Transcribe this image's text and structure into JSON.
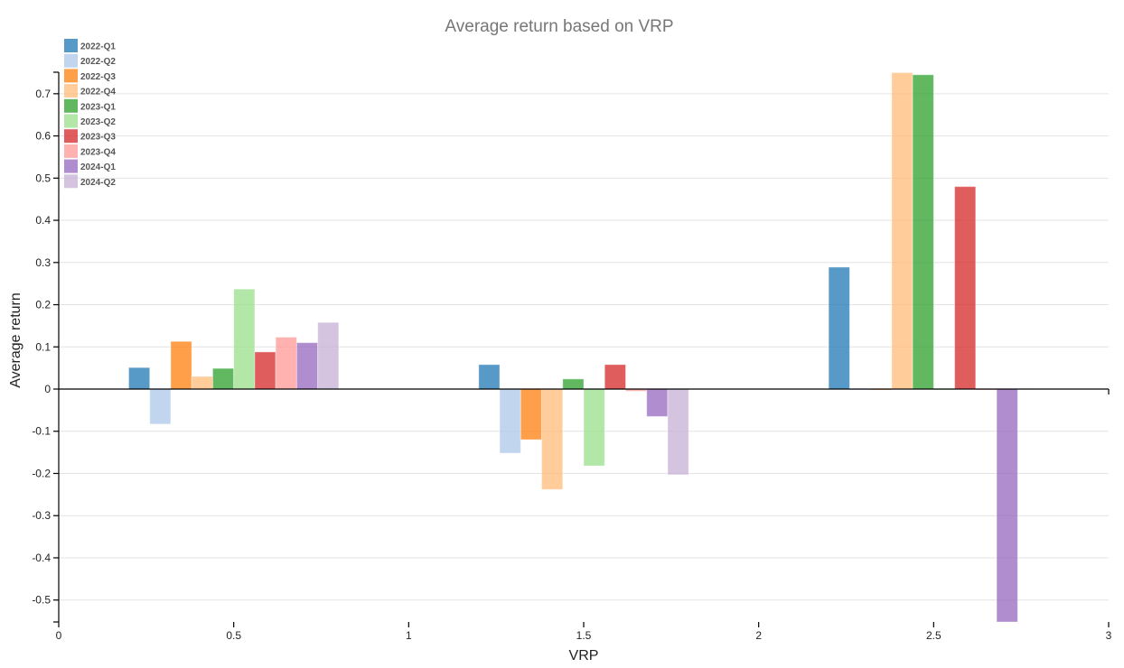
{
  "chart_data": {
    "type": "bar",
    "title": "Average return based on VRP",
    "xlabel": "VRP",
    "ylabel": "Average return",
    "xlim": [
      0,
      3
    ],
    "ylim": [
      -0.552,
      0.751
    ],
    "x_ticks": [
      0,
      0.5,
      1,
      1.5,
      2,
      2.5,
      3
    ],
    "x_tick_labels": [
      "0",
      "0.5",
      "1",
      "1.5",
      "2",
      "2.5",
      "3"
    ],
    "y_ticks": [
      -0.5,
      -0.4,
      -0.3,
      -0.2,
      -0.1,
      0,
      0.1,
      0.2,
      0.3,
      0.4,
      0.5,
      0.6,
      0.7
    ],
    "y_tick_labels": [
      "-0.5",
      "-0.4",
      "-0.3",
      "-0.2",
      "-0.1",
      "0",
      "0.1",
      "0.2",
      "0.3",
      "0.4",
      "0.5",
      "0.6",
      "0.7"
    ],
    "grid": true,
    "legend_position": "top-left",
    "categories": [
      0.5,
      1.5,
      2.5
    ],
    "group_span": 0.6,
    "series": [
      {
        "name": "2022-Q1",
        "color": "#1f77b4",
        "values": [
          0.051,
          0.058,
          0.289
        ]
      },
      {
        "name": "2022-Q2",
        "color": "#aec7e8",
        "values": [
          -0.083,
          -0.152,
          0.0
        ]
      },
      {
        "name": "2022-Q3",
        "color": "#ff7f0e",
        "values": [
          0.113,
          -0.12,
          -0.002
        ]
      },
      {
        "name": "2022-Q4",
        "color": "#ffbb78",
        "values": [
          0.03,
          -0.238,
          0.75
        ]
      },
      {
        "name": "2023-Q1",
        "color": "#2ca02c",
        "values": [
          0.049,
          0.024,
          0.745
        ]
      },
      {
        "name": "2023-Q2",
        "color": "#98df8a",
        "values": [
          0.237,
          -0.182,
          0.0
        ]
      },
      {
        "name": "2023-Q3",
        "color": "#d62728",
        "values": [
          0.088,
          0.058,
          0.48
        ]
      },
      {
        "name": "2023-Q4",
        "color": "#ff9896",
        "values": [
          0.123,
          -0.005,
          -0.001
        ]
      },
      {
        "name": "2024-Q1",
        "color": "#9467bd",
        "values": [
          0.11,
          -0.065,
          -0.552
        ]
      },
      {
        "name": "2024-Q2",
        "color": "#c5b0d5",
        "values": [
          0.158,
          -0.203,
          0.001
        ]
      }
    ]
  }
}
